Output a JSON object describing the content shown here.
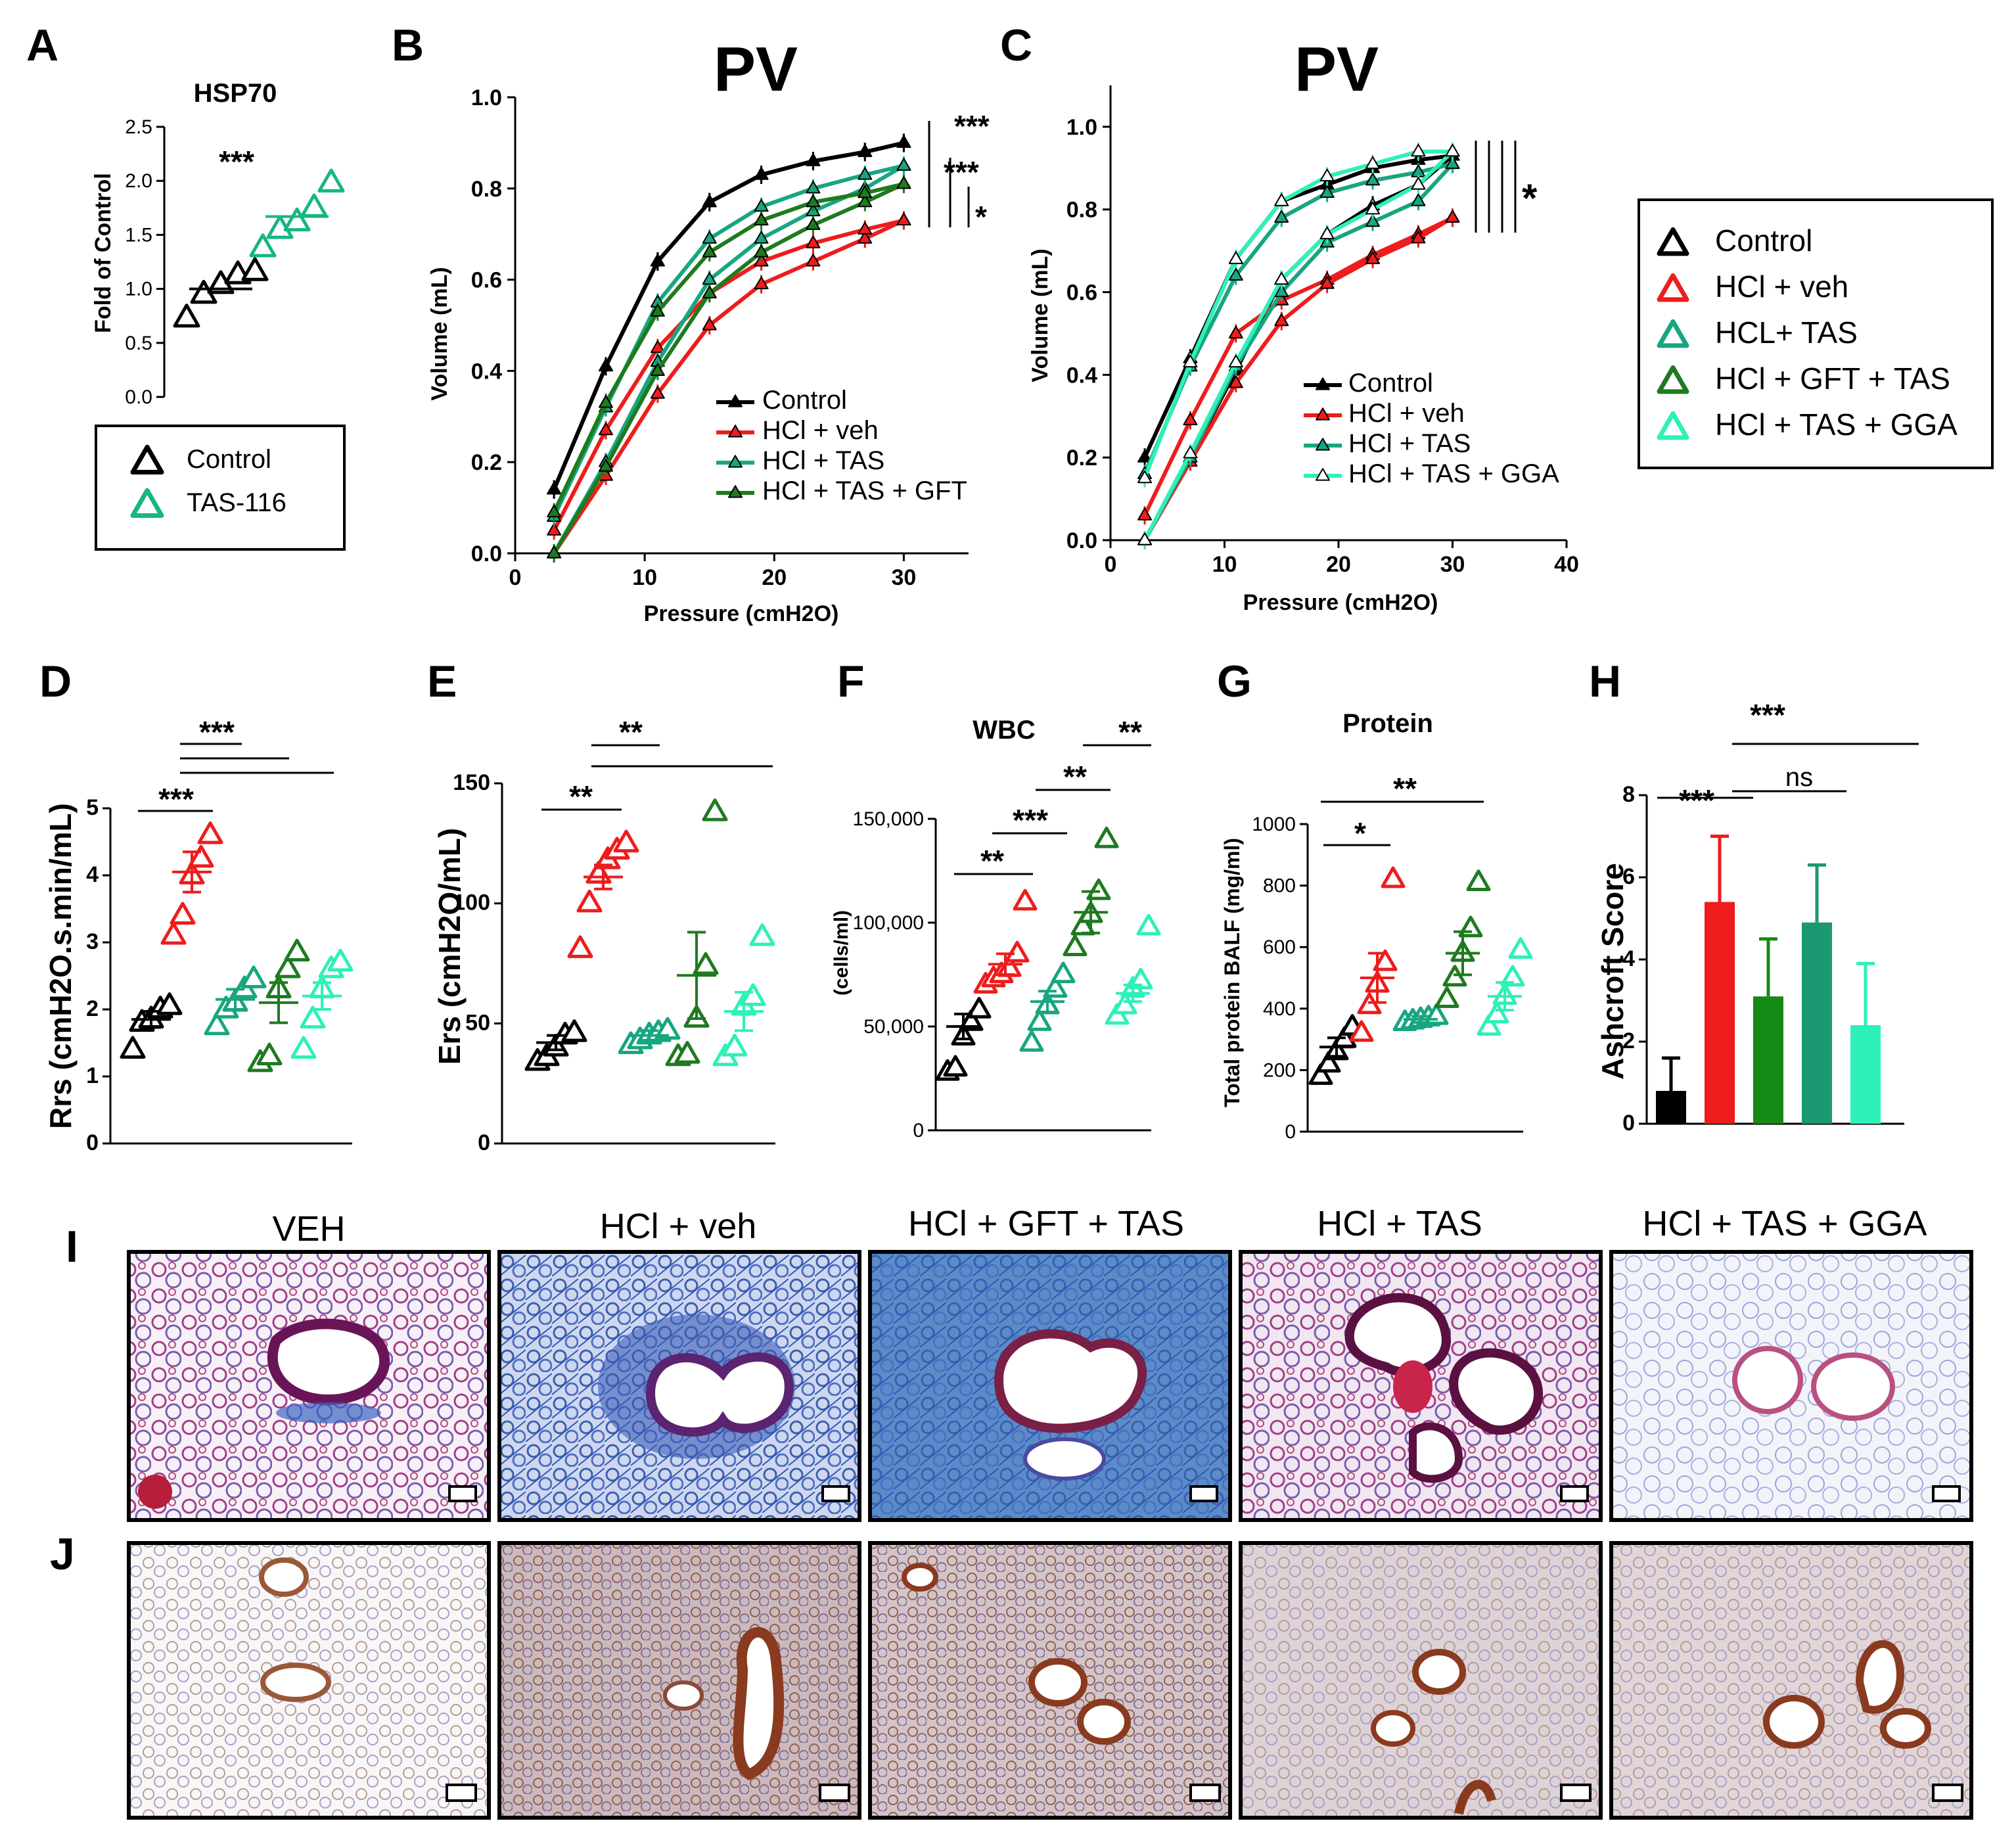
{
  "panel_letters": [
    "A",
    "B",
    "C",
    "D",
    "E",
    "F",
    "G",
    "H",
    "I",
    "J"
  ],
  "colors": {
    "control": "#000000",
    "hcl_veh": "#ee1c1c",
    "tas": "#17a680",
    "gft": "#1f7a1f",
    "gga": "#2ef0b9",
    "tas116": "#18b585",
    "h_gft_tas": "#158a15",
    "h_tas": "#1a9973"
  },
  "chart_data": [
    {
      "id": "A",
      "type": "scatter",
      "title": "HSP70",
      "ylabel": "Fold of Control",
      "ylim": [
        0,
        2.5
      ],
      "yticks": [
        "0.0",
        "0.5",
        "1.0",
        "1.5",
        "2.0",
        "2.5"
      ],
      "groups": [
        {
          "name": "Control",
          "color": "control",
          "mean": 1.0,
          "points": [
            0.73,
            0.95,
            1.04,
            1.13,
            1.16
          ]
        },
        {
          "name": "TAS-116",
          "color": "tas116",
          "mean": 1.67,
          "points": [
            1.38,
            1.55,
            1.62,
            1.75,
            1.98
          ]
        }
      ],
      "significance": [
        "***"
      ],
      "legend": [
        "Control",
        "TAS-116"
      ]
    },
    {
      "id": "B",
      "type": "line",
      "title": "PV",
      "xlabel": "Pressure (cmH2O)",
      "ylabel": "Volume (mL)",
      "xlim": [
        0,
        35
      ],
      "ylim": [
        0,
        1.0
      ],
      "xticks": [
        "0",
        "10",
        "20",
        "30"
      ],
      "yticks": [
        "0.0",
        "0.2",
        "0.4",
        "0.6",
        "0.8",
        "1.0"
      ],
      "x": [
        3,
        7,
        11,
        15,
        19,
        23,
        27,
        30
      ],
      "series": [
        {
          "name": "Control",
          "color": "control",
          "filled": true,
          "inflate": [
            0.14,
            0.41,
            0.64,
            0.77,
            0.83,
            0.86,
            0.88,
            0.9
          ],
          "deflate": [
            0.14,
            0.41,
            0.64,
            0.77,
            0.83,
            0.86,
            0.88,
            0.9
          ]
        },
        {
          "name": "HCl + veh",
          "color": "hcl_veh",
          "filled": true,
          "inflate": [
            0.0,
            0.17,
            0.35,
            0.5,
            0.59,
            0.64,
            0.69,
            0.73
          ],
          "deflate": [
            0.05,
            0.27,
            0.45,
            0.57,
            0.64,
            0.68,
            0.71,
            0.73
          ]
        },
        {
          "name": "HCl + TAS",
          "color": "tas",
          "filled": true,
          "inflate": [
            0.0,
            0.2,
            0.42,
            0.6,
            0.69,
            0.75,
            0.8,
            0.85
          ],
          "deflate": [
            0.08,
            0.32,
            0.55,
            0.69,
            0.76,
            0.8,
            0.83,
            0.85
          ]
        },
        {
          "name": "HCl + TAS + GFT",
          "color": "gft",
          "filled": true,
          "inflate": [
            0.0,
            0.19,
            0.4,
            0.57,
            0.66,
            0.72,
            0.77,
            0.81
          ],
          "deflate": [
            0.09,
            0.33,
            0.53,
            0.66,
            0.73,
            0.77,
            0.79,
            0.81
          ]
        }
      ],
      "significance": [
        "***",
        "***",
        "*"
      ],
      "legend": [
        "Control",
        "HCl + veh",
        "HCl + TAS",
        "HCl + TAS + GFT"
      ]
    },
    {
      "id": "C",
      "type": "line",
      "title": "PV",
      "xlabel": "Pressure (cmH2O)",
      "ylabel": "Volume (mL)",
      "xlim": [
        0,
        40
      ],
      "ylim": [
        0,
        1.1
      ],
      "xticks": [
        "0",
        "10",
        "20",
        "30",
        "40"
      ],
      "yticks": [
        "0.0",
        "0.2",
        "0.4",
        "0.6",
        "0.8",
        "1.0"
      ],
      "x": [
        3,
        7,
        11,
        15,
        19,
        23,
        27,
        30
      ],
      "series": [
        {
          "name": "Control",
          "color": "control",
          "filled": true,
          "inflate": [
            0.0,
            0.2,
            0.41,
            0.63,
            0.74,
            0.81,
            0.86,
            0.93
          ],
          "deflate": [
            0.2,
            0.44,
            0.68,
            0.82,
            0.86,
            0.9,
            0.92,
            0.93
          ]
        },
        {
          "name": "HCl + veh",
          "color": "hcl_veh",
          "filled": true,
          "inflate": [
            0.06,
            0.29,
            0.5,
            0.58,
            0.63,
            0.69,
            0.74,
            0.78
          ],
          "deflate": [
            0.0,
            0.19,
            0.38,
            0.53,
            0.62,
            0.68,
            0.73,
            0.78
          ]
        },
        {
          "name": "HCl + TAS",
          "color": "tas",
          "filled": true,
          "inflate": [
            0.0,
            0.2,
            0.42,
            0.6,
            0.72,
            0.77,
            0.82,
            0.91
          ],
          "deflate": [
            0.16,
            0.42,
            0.64,
            0.78,
            0.84,
            0.87,
            0.89,
            0.91
          ]
        },
        {
          "name": "HCl + TAS + GGA",
          "color": "gga",
          "filled": false,
          "inflate": [
            0.0,
            0.21,
            0.43,
            0.63,
            0.74,
            0.8,
            0.86,
            0.94
          ],
          "deflate": [
            0.15,
            0.43,
            0.68,
            0.82,
            0.88,
            0.91,
            0.94,
            0.94
          ]
        }
      ],
      "significance": [
        "*"
      ],
      "legend": [
        "Control",
        "HCl + veh",
        "HCl + TAS",
        "HCl + TAS + GGA"
      ]
    },
    {
      "id": "D",
      "type": "scatter",
      "ylabel": "Rrs (cmH2O.s.min/mL)",
      "ylim": [
        0,
        5
      ],
      "yticks": [
        "0",
        "1",
        "2",
        "3",
        "4",
        "5"
      ],
      "groups": [
        {
          "name": "Control",
          "color": "control",
          "mean": 1.85,
          "sem": 0.12,
          "points": [
            1.4,
            1.8,
            1.85,
            2.0,
            2.05
          ]
        },
        {
          "name": "HCl + veh",
          "color": "hcl_veh",
          "mean": 4.05,
          "sem": 0.3,
          "points": [
            3.1,
            3.4,
            4.0,
            4.25,
            4.6
          ]
        },
        {
          "name": "HCl + TAS",
          "color": "tas",
          "mean": 2.15,
          "sem": 0.15,
          "points": [
            1.75,
            2.0,
            2.1,
            2.3,
            2.45
          ]
        },
        {
          "name": "HCl + GFT + TAS",
          "color": "gft",
          "mean": 2.1,
          "sem": 0.3,
          "points": [
            1.2,
            1.3,
            2.3,
            2.6,
            2.85
          ]
        },
        {
          "name": "HCl + TAS + GGA",
          "color": "gga",
          "mean": 2.2,
          "sem": 0.2,
          "points": [
            1.4,
            1.85,
            2.3,
            2.6,
            2.7
          ]
        }
      ],
      "significance": [
        "***",
        "***"
      ]
    },
    {
      "id": "E",
      "type": "scatter",
      "ylabel": "Ers (cmH2O/mL)",
      "ylim": [
        0,
        150
      ],
      "yticks": [
        "0",
        "50",
        "100",
        "150"
      ],
      "groups": [
        {
          "name": "Control",
          "color": "control",
          "mean": 42,
          "sem": 3,
          "points": [
            34,
            36,
            40,
            45,
            46
          ]
        },
        {
          "name": "HCl + veh",
          "color": "hcl_veh",
          "mean": 111,
          "sem": 5,
          "points": [
            81,
            100,
            112,
            118,
            122,
            125
          ]
        },
        {
          "name": "HCl + TAS",
          "color": "tas",
          "mean": 45,
          "sem": 2,
          "points": [
            41,
            43,
            45,
            46,
            47
          ]
        },
        {
          "name": "HCl + GFT + TAS",
          "color": "gft",
          "mean": 70,
          "sem": 18,
          "points": [
            36,
            37,
            52,
            74,
            138
          ]
        },
        {
          "name": "HCl + TAS + GGA",
          "color": "gga",
          "mean": 55,
          "sem": 8,
          "points": [
            36,
            40,
            57,
            61,
            86
          ]
        }
      ],
      "significance": [
        "**",
        "**"
      ]
    },
    {
      "id": "F",
      "type": "scatter",
      "title": "WBC",
      "ylabel": "(cells/ml)",
      "ylim": [
        0,
        150000
      ],
      "yticks": [
        "0",
        "50,000",
        "100,000",
        "150,000"
      ],
      "groups": [
        {
          "name": "Control",
          "color": "control",
          "mean": 50000,
          "sem": 6000,
          "points": [
            28000,
            30000,
            45000,
            52000,
            58000
          ]
        },
        {
          "name": "HCl + veh",
          "color": "hcl_veh",
          "mean": 80000,
          "sem": 5000,
          "points": [
            70000,
            73000,
            75000,
            78000,
            85000,
            110000
          ]
        },
        {
          "name": "HCl + TAS",
          "color": "tas",
          "mean": 62000,
          "sem": 5000,
          "points": [
            42000,
            52000,
            60000,
            68000,
            75000
          ]
        },
        {
          "name": "HCl + GFT + TAS",
          "color": "gft",
          "mean": 105000,
          "sem": 10000,
          "points": [
            88000,
            98000,
            104000,
            115000,
            140000
          ]
        },
        {
          "name": "HCl + TAS + GGA",
          "color": "gga",
          "mean": 66000,
          "sem": 4000,
          "points": [
            55000,
            60000,
            68000,
            72000,
            98000
          ]
        }
      ],
      "significance": [
        "**",
        "***",
        "**",
        "**"
      ]
    },
    {
      "id": "G",
      "type": "scatter",
      "title": "Protein",
      "ylabel": "Total protein BALF (mg/ml)",
      "ylim": [
        0,
        1000
      ],
      "yticks": [
        "0",
        "200",
        "400",
        "600",
        "800",
        "1000"
      ],
      "groups": [
        {
          "name": "Control",
          "color": "control",
          "mean": 275,
          "sem": 30,
          "points": [
            180,
            220,
            260,
            300,
            340
          ]
        },
        {
          "name": "HCl + veh",
          "color": "hcl_veh",
          "mean": 500,
          "sem": 80,
          "points": [
            320,
            410,
            480,
            550,
            820
          ]
        },
        {
          "name": "HCl + TAS",
          "color": "tas",
          "mean": 365,
          "sem": 10,
          "points": [
            355,
            360,
            365,
            370,
            375
          ]
        },
        {
          "name": "HCl + GFT + TAS",
          "color": "gft",
          "mean": 580,
          "sem": 70,
          "points": [
            430,
            500,
            580,
            660,
            810
          ]
        },
        {
          "name": "HCl + TAS + GGA",
          "color": "gga",
          "mean": 440,
          "sem": 45,
          "points": [
            340,
            380,
            440,
            500,
            590
          ]
        }
      ],
      "significance": [
        "*",
        "**"
      ]
    },
    {
      "id": "H",
      "type": "bar",
      "ylabel": "Ashcroft Score",
      "ylim": [
        0,
        8
      ],
      "yticks": [
        "0",
        "2",
        "4",
        "6",
        "8"
      ],
      "bars": [
        {
          "name": "Control",
          "color": "control",
          "value": 0.8,
          "err": 0.8
        },
        {
          "name": "HCl + veh",
          "color": "hcl_veh",
          "value": 5.4,
          "err": 1.6
        },
        {
          "name": "HCl + GFT + TAS",
          "color": "h_gft_tas",
          "value": 3.1,
          "err": 1.4
        },
        {
          "name": "HCl + TAS",
          "color": "h_tas",
          "value": 4.9,
          "err": 1.4
        },
        {
          "name": "HCl + TAS + GGA",
          "color": "gga",
          "value": 2.4,
          "err": 1.5
        }
      ],
      "significance": [
        "***",
        "***",
        "ns"
      ]
    }
  ],
  "right_legend": [
    {
      "label": "Control",
      "color": "control"
    },
    {
      "label": "HCl + veh",
      "color": "hcl_veh"
    },
    {
      "label": "HCL+ TAS",
      "color": "tas"
    },
    {
      "label": "HCl + GFT + TAS",
      "color": "gft"
    },
    {
      "label": "HCl + TAS + GGA",
      "color": "gga"
    }
  ],
  "histology": {
    "labels": [
      "VEH",
      "HCl + veh",
      "HCl + GFT + TAS",
      "HCl + TAS",
      "HCl + TAS + GGA"
    ]
  }
}
